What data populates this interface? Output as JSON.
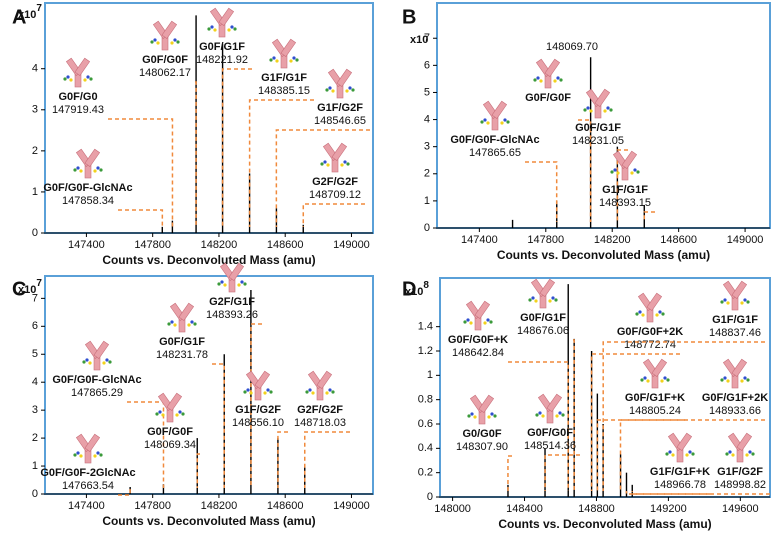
{
  "chart_data": [
    {
      "type": "stem",
      "panel_label": "A",
      "multiplier": "x10",
      "exponent": "7",
      "x_label": "Counts vs. Deconvoluted Mass (amu)",
      "color": "#000000",
      "x": [
        147858,
        147919,
        148062,
        148222,
        148385,
        148547,
        148709
      ],
      "values": [
        0.15,
        0.3,
        5.3,
        4.6,
        1.45,
        0.6,
        0.2
      ],
      "xlim": [
        147150,
        149130
      ],
      "ylim": [
        0,
        5.6
      ],
      "xticks": [
        147400,
        147800,
        148200,
        148600,
        149000
      ],
      "yticks": [
        0,
        1,
        2,
        3,
        4
      ],
      "annotations": [
        {
          "name": "G0F/G0",
          "mass": "147919.43"
        },
        {
          "name": "G0F/G0F-GlcNAc",
          "mass": "147858.34"
        },
        {
          "name": "G0F/G0F",
          "mass": "148062.17"
        },
        {
          "name": "G0F/G1F",
          "mass": "148221.92"
        },
        {
          "name": "G1F/G1F",
          "mass": "148385.15"
        },
        {
          "name": "G1F/G2F",
          "mass": "148546.65"
        },
        {
          "name": "G2F/G2F",
          "mass": "148709.12"
        }
      ]
    },
    {
      "type": "stem",
      "panel_label": "B",
      "multiplier": "x10",
      "x_label": "Counts vs. Deconvoluted Mass (amu)",
      "color": "#000000",
      "x": [
        147600,
        147866,
        148070,
        148231,
        148393
      ],
      "values": [
        0.3,
        1.0,
        6.3,
        3.0,
        0.85
      ],
      "xlim": [
        147145,
        149150
      ],
      "ylim": [
        0,
        8.3
      ],
      "xticks": [
        147400,
        147800,
        148200,
        148600,
        149000
      ],
      "yticks": [
        0,
        1,
        2,
        3,
        4,
        5,
        6,
        7
      ],
      "annotations": [
        {
          "name": "G0F/G0F-GlcNAc",
          "mass": "147865.65"
        },
        {
          "name": "G0F/G0F",
          "mass": "148069.70"
        },
        {
          "name": "G0F/G1F",
          "mass": "148231.05"
        },
        {
          "name": "G1F/G1F",
          "mass": "148393.15"
        }
      ]
    },
    {
      "type": "stem",
      "panel_label": "C",
      "multiplier": "x10",
      "exponent": "7",
      "x_label": "Counts vs. Deconvoluted Mass (amu)",
      "color": "#000000",
      "x": [
        147664,
        147865,
        148069,
        148232,
        148393,
        148556,
        148718
      ],
      "values": [
        0.25,
        0.35,
        2.0,
        5.0,
        7.3,
        2.0,
        1.0
      ],
      "xlim": [
        147150,
        149130
      ],
      "ylim": [
        0,
        7.8
      ],
      "xticks": [
        147400,
        147800,
        148200,
        148600,
        149000
      ],
      "yticks": [
        0,
        1,
        2,
        3,
        4,
        5,
        6,
        7
      ],
      "annotations": [
        {
          "name": "G0F/G0F-GlcNAc",
          "mass": "147865.29"
        },
        {
          "name": "G0F/G0F-2GlcNAc",
          "mass": "147663.54"
        },
        {
          "name": "G0F/G0F",
          "mass": "148069.34"
        },
        {
          "name": "G0F/G1F",
          "mass": "148231.78"
        },
        {
          "name": "G2F/G1F",
          "mass": "148393.26"
        },
        {
          "name": "G1F/G2F",
          "mass": "148556.10"
        },
        {
          "name": "G2F/G2F",
          "mass": "148718.03"
        }
      ]
    },
    {
      "type": "stem",
      "panel_label": "D",
      "multiplier": "x10",
      "exponent": "8",
      "x_label": "Counts vs. Deconvoluted Mass (amu)",
      "color": "#000000",
      "x": [
        148308,
        148514,
        148643,
        148676,
        148773,
        148805,
        148837,
        148934,
        148967,
        148999
      ],
      "values": [
        0.1,
        0.4,
        1.75,
        1.3,
        1.2,
        0.85,
        0.6,
        0.35,
        0.2,
        0.1
      ],
      "xlim": [
        147930,
        149765
      ],
      "ylim": [
        0,
        1.8
      ],
      "xticks": [
        148000,
        148400,
        148800,
        149200,
        149600
      ],
      "yticks": [
        0,
        0.2,
        0.4,
        0.6,
        0.8,
        1,
        1.2,
        1.4
      ],
      "annotations": [
        {
          "name": "G0F/G0F+K",
          "mass": "148642.84"
        },
        {
          "name": "G0F/G1F",
          "mass": "148676.06"
        },
        {
          "name": "G0F/G0F+2K",
          "mass": "148772.74"
        },
        {
          "name": "G1F/G1F",
          "mass": "148837.46"
        },
        {
          "name": "G0/G0F",
          "mass": "148307.90"
        },
        {
          "name": "G0F/G0F",
          "mass": "148514.36"
        },
        {
          "name": "G0F/G1F+K",
          "mass": "148805.24"
        },
        {
          "name": "G0F/G1F+2K",
          "mass": "148933.66"
        },
        {
          "name": "G1F/G1F+K",
          "mass": "148966.78"
        },
        {
          "name": "G1F/G2F",
          "mass": "148998.82"
        }
      ]
    }
  ]
}
